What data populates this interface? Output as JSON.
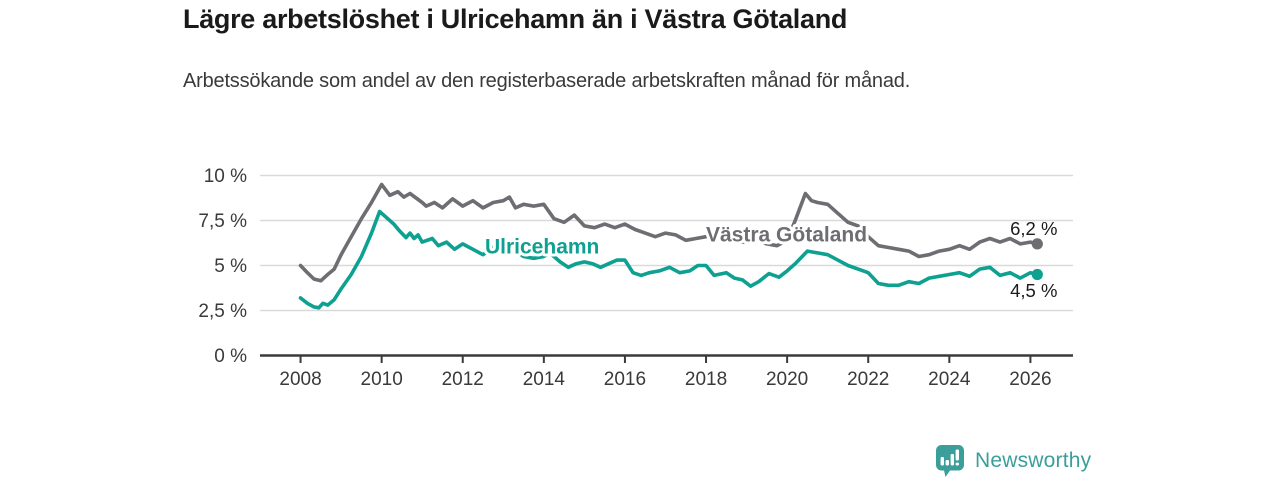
{
  "header": {
    "title": "Lägre arbetslöshet i Ulricehamn än i Västra Götaland",
    "subtitle": "Arbetssökande som andel av den registerbaserade arbetskraften månad för månad."
  },
  "footer": {
    "brand": "Newsworthy"
  },
  "colors": {
    "ulricehamn": "#0ea091",
    "vastra_gotaland": "#6d6d72",
    "grid": "#d9d9d9",
    "axis": "#3a3a3a",
    "axis_text": "#3a3a3a",
    "annotation_text": "#1a1a1a",
    "brand_teal": "#3b9e9b",
    "background": "#ffffff"
  },
  "chart_data": {
    "type": "line",
    "title": "Lägre arbetslöshet i Ulricehamn än i Västra Götaland",
    "subtitle": "Arbetssökande som andel av den registerbaserade arbetskraften månad för månad.",
    "x_unit": "year (decimal, monthly data)",
    "y_unit": "percent of registered labour force",
    "xlim": [
      2007.0,
      2027.05
    ],
    "ylim": [
      0,
      10
    ],
    "grid": "horizontal",
    "legend_position": "inline-labels",
    "xticks": [
      2008,
      2010,
      2012,
      2014,
      2016,
      2018,
      2020,
      2022,
      2024,
      2026
    ],
    "yticks": [
      0,
      2.5,
      5,
      7.5,
      10
    ],
    "ytick_labels": [
      "0 %",
      "2,5 %",
      "5 %",
      "7,5 %",
      "10 %"
    ],
    "series": [
      {
        "name": "Västra Götaland",
        "color": "#6d6d72",
        "end_value": 6.2,
        "end_label": "6,2 %",
        "points": [
          [
            2008.0,
            5.0
          ],
          [
            2008.17,
            4.6
          ],
          [
            2008.33,
            4.25
          ],
          [
            2008.5,
            4.15
          ],
          [
            2008.67,
            4.5
          ],
          [
            2008.83,
            4.8
          ],
          [
            2009.0,
            5.6
          ],
          [
            2009.25,
            6.6
          ],
          [
            2009.5,
            7.6
          ],
          [
            2009.75,
            8.5
          ],
          [
            2010.0,
            9.5
          ],
          [
            2010.2,
            8.9
          ],
          [
            2010.4,
            9.1
          ],
          [
            2010.55,
            8.8
          ],
          [
            2010.7,
            9.0
          ],
          [
            2011.0,
            8.5
          ],
          [
            2011.1,
            8.3
          ],
          [
            2011.3,
            8.5
          ],
          [
            2011.5,
            8.2
          ],
          [
            2011.75,
            8.7
          ],
          [
            2012.0,
            8.3
          ],
          [
            2012.25,
            8.6
          ],
          [
            2012.5,
            8.2
          ],
          [
            2012.75,
            8.5
          ],
          [
            2013.0,
            8.6
          ],
          [
            2013.15,
            8.8
          ],
          [
            2013.3,
            8.2
          ],
          [
            2013.5,
            8.4
          ],
          [
            2013.75,
            8.3
          ],
          [
            2014.0,
            8.4
          ],
          [
            2014.25,
            7.6
          ],
          [
            2014.5,
            7.4
          ],
          [
            2014.75,
            7.8
          ],
          [
            2015.0,
            7.2
          ],
          [
            2015.25,
            7.1
          ],
          [
            2015.5,
            7.3
          ],
          [
            2015.75,
            7.1
          ],
          [
            2016.0,
            7.3
          ],
          [
            2016.25,
            7.0
          ],
          [
            2016.5,
            6.8
          ],
          [
            2016.75,
            6.6
          ],
          [
            2017.0,
            6.8
          ],
          [
            2017.25,
            6.7
          ],
          [
            2017.5,
            6.4
          ],
          [
            2017.75,
            6.5
          ],
          [
            2018.0,
            6.6
          ],
          [
            2018.25,
            6.7
          ],
          [
            2018.5,
            6.4
          ],
          [
            2018.75,
            6.3
          ],
          [
            2019.0,
            6.3
          ],
          [
            2019.25,
            6.4
          ],
          [
            2019.5,
            6.2
          ],
          [
            2019.75,
            6.1
          ],
          [
            2020.0,
            6.4
          ],
          [
            2020.2,
            7.5
          ],
          [
            2020.45,
            9.0
          ],
          [
            2020.6,
            8.6
          ],
          [
            2020.75,
            8.5
          ],
          [
            2021.0,
            8.4
          ],
          [
            2021.25,
            7.9
          ],
          [
            2021.5,
            7.4
          ],
          [
            2021.75,
            7.2
          ],
          [
            2022.0,
            6.6
          ],
          [
            2022.25,
            6.1
          ],
          [
            2022.5,
            6.0
          ],
          [
            2022.75,
            5.9
          ],
          [
            2023.0,
            5.8
          ],
          [
            2023.25,
            5.5
          ],
          [
            2023.5,
            5.6
          ],
          [
            2023.75,
            5.8
          ],
          [
            2024.0,
            5.9
          ],
          [
            2024.25,
            6.1
          ],
          [
            2024.5,
            5.9
          ],
          [
            2024.75,
            6.3
          ],
          [
            2025.0,
            6.5
          ],
          [
            2025.25,
            6.3
          ],
          [
            2025.5,
            6.5
          ],
          [
            2025.75,
            6.2
          ],
          [
            2026.0,
            6.3
          ],
          [
            2026.17,
            6.2
          ]
        ]
      },
      {
        "name": "Ulricehamn",
        "color": "#0ea091",
        "end_value": 4.5,
        "end_label": "4,5 %",
        "points": [
          [
            2008.0,
            3.2
          ],
          [
            2008.17,
            2.9
          ],
          [
            2008.33,
            2.7
          ],
          [
            2008.45,
            2.65
          ],
          [
            2008.55,
            2.9
          ],
          [
            2008.67,
            2.8
          ],
          [
            2008.83,
            3.1
          ],
          [
            2009.0,
            3.7
          ],
          [
            2009.25,
            4.5
          ],
          [
            2009.5,
            5.5
          ],
          [
            2009.75,
            6.8
          ],
          [
            2009.95,
            8.0
          ],
          [
            2010.1,
            7.7
          ],
          [
            2010.3,
            7.3
          ],
          [
            2010.45,
            6.9
          ],
          [
            2010.6,
            6.55
          ],
          [
            2010.7,
            6.8
          ],
          [
            2010.8,
            6.5
          ],
          [
            2010.9,
            6.7
          ],
          [
            2011.0,
            6.3
          ],
          [
            2011.25,
            6.5
          ],
          [
            2011.4,
            6.1
          ],
          [
            2011.6,
            6.3
          ],
          [
            2011.8,
            5.9
          ],
          [
            2012.0,
            6.2
          ],
          [
            2012.25,
            5.9
          ],
          [
            2012.5,
            5.6
          ],
          [
            2012.75,
            6.0
          ],
          [
            2013.0,
            6.1
          ],
          [
            2013.25,
            5.9
          ],
          [
            2013.5,
            5.5
          ],
          [
            2013.75,
            5.4
          ],
          [
            2014.0,
            5.5
          ],
          [
            2014.15,
            5.7
          ],
          [
            2014.4,
            5.2
          ],
          [
            2014.6,
            4.9
          ],
          [
            2014.8,
            5.1
          ],
          [
            2015.0,
            5.2
          ],
          [
            2015.2,
            5.1
          ],
          [
            2015.4,
            4.9
          ],
          [
            2015.6,
            5.1
          ],
          [
            2015.8,
            5.3
          ],
          [
            2016.0,
            5.3
          ],
          [
            2016.2,
            4.6
          ],
          [
            2016.4,
            4.45
          ],
          [
            2016.6,
            4.6
          ],
          [
            2016.85,
            4.7
          ],
          [
            2017.1,
            4.9
          ],
          [
            2017.35,
            4.6
          ],
          [
            2017.6,
            4.7
          ],
          [
            2017.8,
            5.0
          ],
          [
            2018.0,
            5.0
          ],
          [
            2018.2,
            4.45
          ],
          [
            2018.5,
            4.6
          ],
          [
            2018.7,
            4.3
          ],
          [
            2018.9,
            4.2
          ],
          [
            2019.1,
            3.85
          ],
          [
            2019.3,
            4.1
          ],
          [
            2019.55,
            4.55
          ],
          [
            2019.8,
            4.35
          ],
          [
            2020.0,
            4.7
          ],
          [
            2020.2,
            5.1
          ],
          [
            2020.5,
            5.8
          ],
          [
            2020.75,
            5.7
          ],
          [
            2021.0,
            5.6
          ],
          [
            2021.25,
            5.3
          ],
          [
            2021.5,
            5.0
          ],
          [
            2021.75,
            4.8
          ],
          [
            2022.0,
            4.6
          ],
          [
            2022.25,
            4.0
          ],
          [
            2022.5,
            3.9
          ],
          [
            2022.75,
            3.9
          ],
          [
            2023.0,
            4.1
          ],
          [
            2023.25,
            4.0
          ],
          [
            2023.5,
            4.3
          ],
          [
            2023.75,
            4.4
          ],
          [
            2024.0,
            4.5
          ],
          [
            2024.25,
            4.6
          ],
          [
            2024.5,
            4.4
          ],
          [
            2024.75,
            4.8
          ],
          [
            2025.0,
            4.9
          ],
          [
            2025.25,
            4.45
          ],
          [
            2025.5,
            4.6
          ],
          [
            2025.75,
            4.3
          ],
          [
            2026.0,
            4.6
          ],
          [
            2026.17,
            4.5
          ]
        ]
      }
    ],
    "annotations": [
      {
        "text": "Ulricehamn",
        "x": 2012.55,
        "y": 5.68,
        "color": "#0ea091",
        "bold": true,
        "halo": true
      },
      {
        "text": "Västra Götaland",
        "x": 2018.0,
        "y": 6.32,
        "color": "#6d6d72",
        "bold": true,
        "halo": true
      },
      {
        "text": "6,2 %",
        "x": 2025.5,
        "y": 6.69,
        "color": "#1a1a1a",
        "bold": false,
        "halo": false
      },
      {
        "text": "4,5 %",
        "x": 2025.5,
        "y": 3.25,
        "color": "#1a1a1a",
        "bold": false,
        "halo": false
      }
    ]
  }
}
